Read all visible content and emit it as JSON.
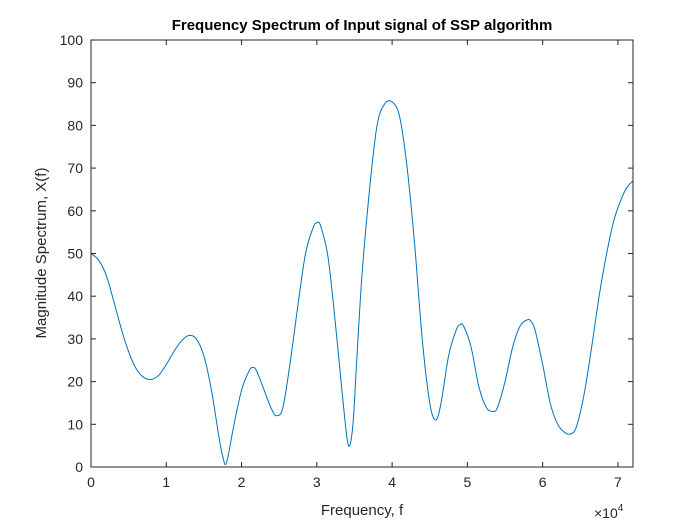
{
  "chart_data": {
    "type": "line",
    "title": "Frequency Spectrum of Input signal of SSP algorithm",
    "xlabel": "Frequency, f",
    "ylabel": "Magnitude Spectrum, X(f)",
    "x_exponent_base": "×10",
    "x_exponent_power": "4",
    "xlim": [
      0,
      72000
    ],
    "ylim": [
      0,
      100
    ],
    "xticks": [
      0,
      10000,
      20000,
      30000,
      40000,
      50000,
      60000,
      70000
    ],
    "xtick_labels": [
      "0",
      "1",
      "2",
      "3",
      "4",
      "5",
      "6",
      "7"
    ],
    "yticks": [
      0,
      10,
      20,
      30,
      40,
      50,
      60,
      70,
      80,
      90,
      100
    ],
    "ytick_labels": [
      "0",
      "10",
      "20",
      "30",
      "40",
      "50",
      "60",
      "70",
      "80",
      "90",
      "100"
    ],
    "grid": false,
    "line_color": "#0072BD",
    "series": [
      {
        "x": [
          0,
          1000,
          2000,
          3000,
          4000,
          5000,
          6000,
          7000,
          8000,
          9000,
          10000,
          11000,
          12000,
          13000,
          14000,
          15000,
          16000,
          17000,
          17500,
          18000,
          19000,
          20000,
          21000,
          21500,
          22000,
          23000,
          24000,
          24700,
          25500,
          26500,
          27500,
          28500,
          29500,
          30000,
          30500,
          31500,
          32500,
          33500,
          34200,
          34800,
          35300,
          36000,
          37000,
          38000,
          39000,
          40000,
          41000,
          42000,
          43000,
          44000,
          45000,
          45800,
          46500,
          47500,
          48500,
          49000,
          49500,
          50500,
          51500,
          52500,
          53400,
          54000,
          55000,
          56000,
          57000,
          58000,
          58500,
          59000,
          60000,
          61000,
          62000,
          63000,
          63800,
          64500,
          65500,
          66500,
          67500,
          68500,
          69500,
          70500,
          71200,
          72000
        ],
        "y": [
          50,
          48.5,
          45,
          39,
          32.5,
          27,
          23,
          21,
          20.5,
          21.5,
          24,
          27,
          29.5,
          30.8,
          30,
          26,
          18,
          7,
          2.5,
          1,
          10,
          18,
          22.5,
          23.3,
          22.5,
          18,
          13.5,
          12,
          14,
          25,
          38,
          50,
          56,
          57.2,
          56.5,
          49,
          33,
          15,
          5,
          10,
          25,
          45,
          65,
          80,
          85,
          85.5,
          82,
          70,
          52,
          30,
          15,
          11,
          15,
          26,
          32,
          33.3,
          33,
          28,
          19,
          14,
          13,
          14,
          20,
          28,
          33,
          34.5,
          34,
          32,
          24,
          15,
          10,
          8,
          7.8,
          9.5,
          17,
          28,
          40,
          50,
          58,
          63,
          65.5,
          67
        ]
      }
    ]
  }
}
